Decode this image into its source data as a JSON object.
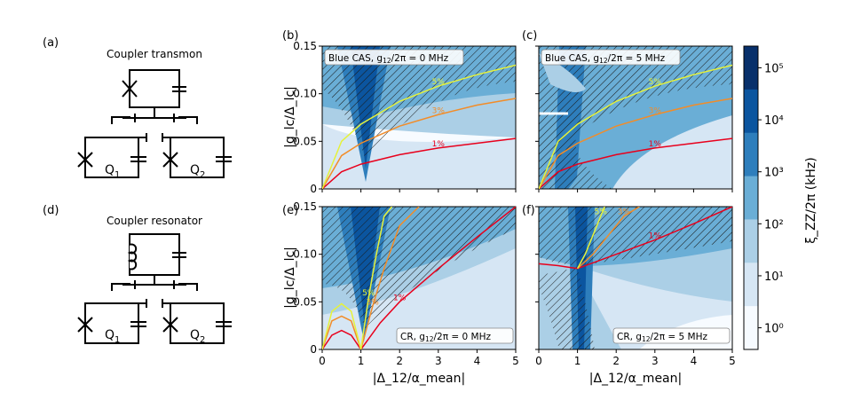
{
  "circuits": {
    "a": {
      "label": "(a)",
      "title": "Coupler transmon"
    },
    "d": {
      "label": "(d)",
      "title": "Coupler resonator"
    },
    "q1": "Q",
    "q2": "Q",
    "q1_sub": "1",
    "q2_sub": "2"
  },
  "panels": [
    {
      "id": "b",
      "label": "(b)",
      "annotation": "Blue CAS, g",
      "annotation_sub": "12",
      "annotation_rest": "/2π = 0 MHz"
    },
    {
      "id": "c",
      "label": "(c)",
      "annotation": "Blue CAS, g",
      "annotation_sub": "12",
      "annotation_rest": "/2π = 5 MHz"
    },
    {
      "id": "e",
      "label": "(e)",
      "annotation": "CR, g",
      "annotation_sub": "12",
      "annotation_rest": "/2π = 0 MHz"
    },
    {
      "id": "f",
      "label": "(f)",
      "annotation": "CR, g",
      "annotation_sub": "12",
      "annotation_rest": "/2π = 5 MHz"
    }
  ],
  "axes": {
    "ylabel": "|g_lc/Δ_lc|",
    "xlabel": "|Δ_12/α_mean|",
    "xticks": [
      "0",
      "1",
      "2",
      "3",
      "4",
      "5"
    ],
    "yticks": [
      "0",
      "0.05",
      "0.10",
      "0.15"
    ]
  },
  "contour_labels": [
    "1%",
    "3%",
    "5%"
  ],
  "colorbar": {
    "label": "ξ_ZZ/2π (kHz)",
    "ticks": [
      "10⁰",
      "10¹",
      "10²",
      "10³",
      "10⁴",
      "10⁵"
    ],
    "colors": [
      "#f7fbff",
      "#d6e6f4",
      "#abcfe6",
      "#6aaed6",
      "#2e7ebc",
      "#0b559f",
      "#08306b"
    ]
  },
  "chart_data": [
    {
      "type": "contour",
      "panel": "b",
      "xlim": [
        0,
        5
      ],
      "ylim": [
        0,
        0.15
      ],
      "series": [
        {
          "name": "1%",
          "x": [
            0.0,
            0.5,
            1.0,
            2.0,
            3.0,
            4.0,
            5.0
          ],
          "y": [
            0.0,
            0.018,
            0.026,
            0.036,
            0.043,
            0.048,
            0.053
          ]
        },
        {
          "name": "3%",
          "x": [
            0.0,
            0.5,
            1.0,
            2.0,
            3.0,
            4.0,
            5.0
          ],
          "y": [
            0.0,
            0.035,
            0.048,
            0.066,
            0.078,
            0.088,
            0.095
          ]
        },
        {
          "name": "5%",
          "x": [
            0.0,
            0.5,
            1.0,
            2.0,
            3.0,
            4.0,
            5.0
          ],
          "y": [
            0.0,
            0.05,
            0.068,
            0.092,
            0.108,
            0.12,
            0.13
          ]
        }
      ]
    },
    {
      "type": "contour",
      "panel": "c",
      "xlim": [
        0,
        5
      ],
      "ylim": [
        0,
        0.15
      ],
      "series": [
        {
          "name": "1%",
          "x": [
            0.0,
            0.5,
            1.0,
            2.0,
            3.0,
            4.0,
            5.0
          ],
          "y": [
            0.0,
            0.018,
            0.026,
            0.036,
            0.043,
            0.048,
            0.053
          ]
        },
        {
          "name": "3%",
          "x": [
            0.0,
            0.5,
            1.0,
            2.0,
            3.0,
            4.0,
            5.0
          ],
          "y": [
            0.0,
            0.035,
            0.048,
            0.066,
            0.078,
            0.088,
            0.095
          ]
        },
        {
          "name": "5%",
          "x": [
            0.0,
            0.5,
            1.0,
            2.0,
            3.0,
            4.0,
            5.0
          ],
          "y": [
            0.0,
            0.05,
            0.068,
            0.092,
            0.108,
            0.12,
            0.13
          ]
        }
      ]
    },
    {
      "type": "contour",
      "panel": "e",
      "xlim": [
        0,
        5
      ],
      "ylim": [
        0,
        0.15
      ],
      "series": [
        {
          "name": "1%",
          "x": [
            0.0,
            0.25,
            0.5,
            0.75,
            1.0,
            1.5,
            2.0,
            3.0,
            4.0,
            5.0
          ],
          "y": [
            0.0,
            0.015,
            0.02,
            0.015,
            0.0,
            0.028,
            0.05,
            0.085,
            0.118,
            0.15
          ]
        },
        {
          "name": "3%",
          "x": [
            0.0,
            0.25,
            0.5,
            0.75,
            1.0,
            1.3,
            1.6,
            2.0,
            2.5
          ],
          "y": [
            0.0,
            0.03,
            0.035,
            0.03,
            0.0,
            0.045,
            0.085,
            0.13,
            0.15
          ]
        },
        {
          "name": "5%",
          "x": [
            0.0,
            0.25,
            0.5,
            0.75,
            1.0,
            1.2,
            1.4,
            1.6,
            1.8
          ],
          "y": [
            0.0,
            0.04,
            0.048,
            0.04,
            0.0,
            0.055,
            0.1,
            0.14,
            0.15
          ]
        }
      ]
    },
    {
      "type": "contour",
      "panel": "f",
      "xlim": [
        0,
        5
      ],
      "ylim": [
        0,
        0.15
      ],
      "series": [
        {
          "name": "1%",
          "x": [
            0.0,
            0.5,
            1.0,
            2.0,
            3.0,
            4.0,
            5.0
          ],
          "y": [
            0.09,
            0.088,
            0.085,
            0.1,
            0.115,
            0.132,
            0.15
          ]
        },
        {
          "name": "3%",
          "x": [
            1.0,
            1.4,
            1.8,
            2.2,
            2.6
          ],
          "y": [
            0.085,
            0.1,
            0.12,
            0.14,
            0.15
          ]
        },
        {
          "name": "5%",
          "x": [
            1.0,
            1.2,
            1.4,
            1.6,
            1.7
          ],
          "y": [
            0.085,
            0.1,
            0.12,
            0.14,
            0.15
          ]
        }
      ]
    }
  ]
}
